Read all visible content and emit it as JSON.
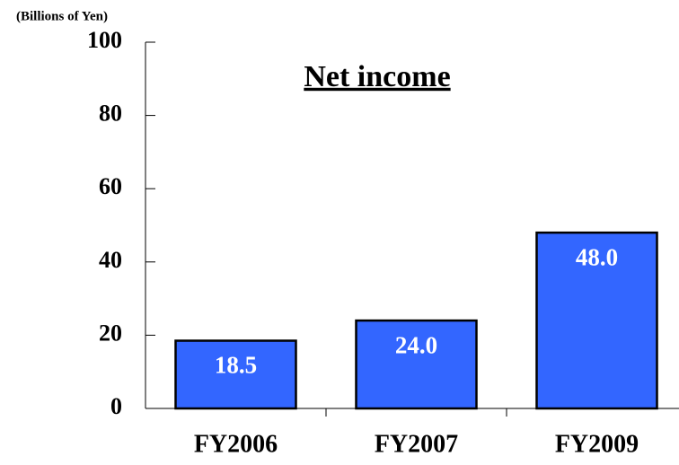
{
  "chart_data": {
    "type": "bar",
    "title": "Net income",
    "y_label": "(Billions of Yen)",
    "categories": [
      "FY2006",
      "FY2007",
      "FY2009"
    ],
    "values": [
      18.5,
      24.0,
      48.0
    ],
    "value_labels": [
      "18.5",
      "24.0",
      "48.0"
    ],
    "color": "#3366ff",
    "ylim": [
      0,
      100
    ],
    "yticks": [
      0,
      20,
      40,
      60,
      80,
      100
    ],
    "grid": false
  }
}
